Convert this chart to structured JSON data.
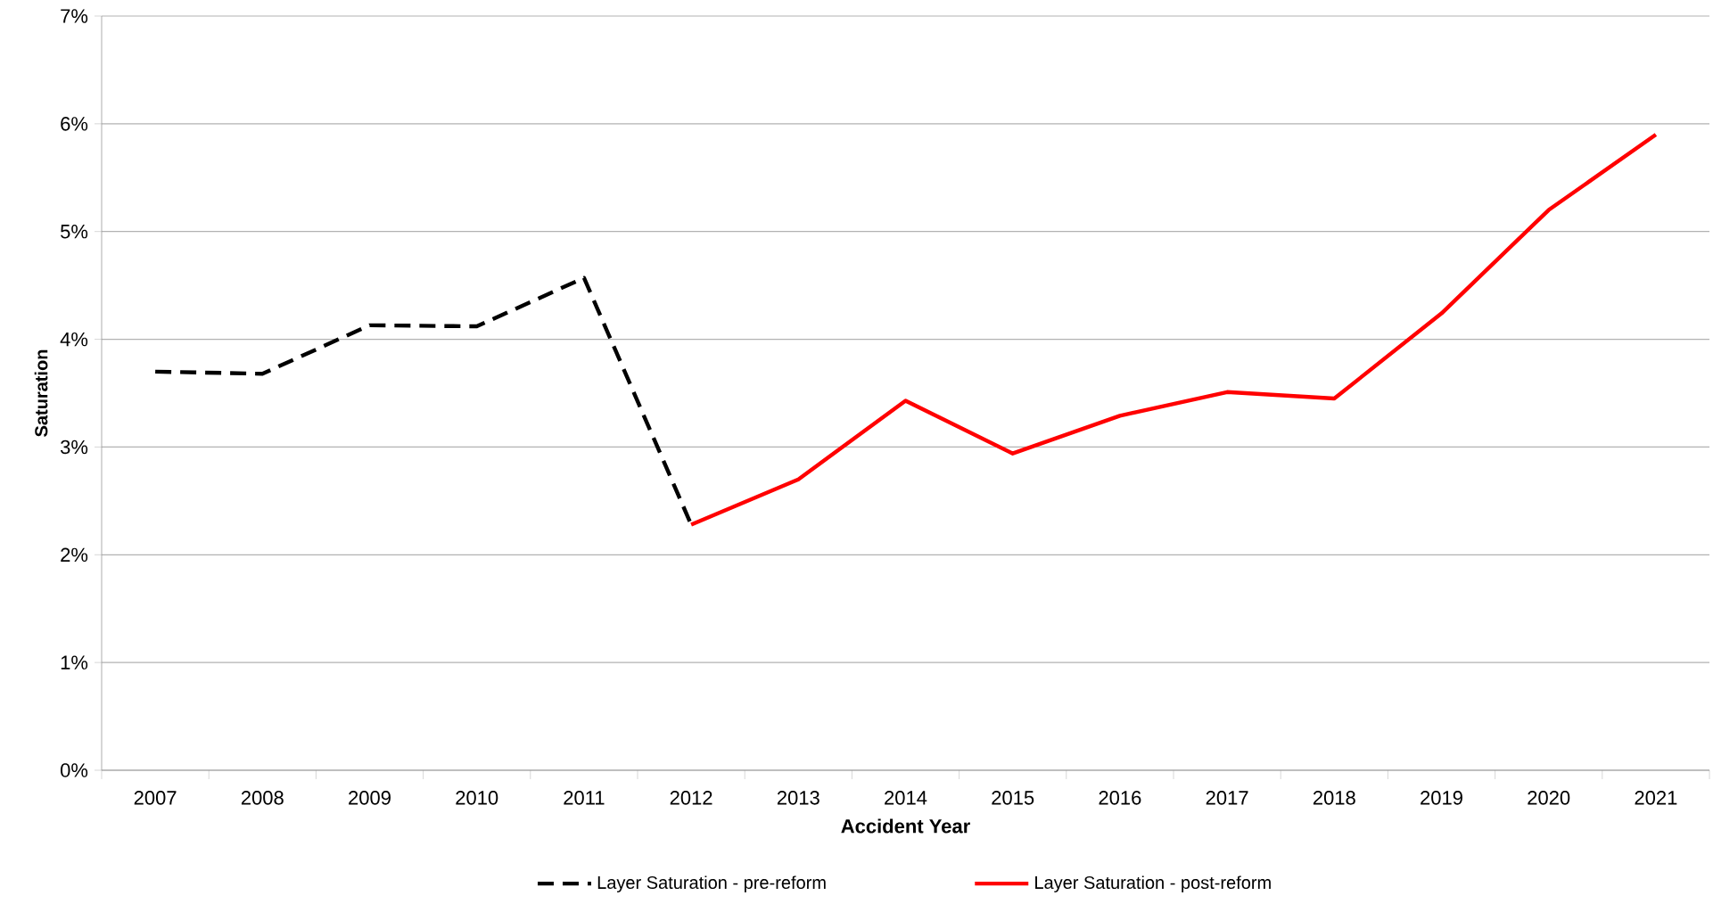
{
  "chart_data": {
    "type": "line",
    "xlabel": "Accident Year",
    "ylabel": "Saturation",
    "categories": [
      "2007",
      "2008",
      "2009",
      "2010",
      "2011",
      "2012",
      "2013",
      "2014",
      "2015",
      "2016",
      "2017",
      "2018",
      "2019",
      "2020",
      "2021"
    ],
    "series": [
      {
        "name": "Layer Saturation - pre-reform",
        "color": "#000000",
        "line_style": "dashed",
        "values": [
          3.7,
          3.68,
          4.13,
          4.12,
          4.57,
          2.28,
          null,
          null,
          null,
          null,
          null,
          null,
          null,
          null,
          null
        ]
      },
      {
        "name": "Layer Saturation - post-reform",
        "color": "#ff0000",
        "line_style": "solid",
        "values": [
          null,
          null,
          null,
          null,
          null,
          2.28,
          2.7,
          3.43,
          2.94,
          3.29,
          3.51,
          3.45,
          4.24,
          5.2,
          5.9
        ]
      }
    ],
    "ylim": [
      0,
      7
    ],
    "yticks": [
      {
        "value": 0,
        "label": "0%"
      },
      {
        "value": 1,
        "label": "1%"
      },
      {
        "value": 2,
        "label": "2%"
      },
      {
        "value": 3,
        "label": "3%"
      },
      {
        "value": 4,
        "label": "4%"
      },
      {
        "value": 5,
        "label": "5%"
      },
      {
        "value": 6,
        "label": "6%"
      },
      {
        "value": 7,
        "label": "7%"
      }
    ],
    "grid": "y",
    "legend": "bottom",
    "marker": "none"
  }
}
